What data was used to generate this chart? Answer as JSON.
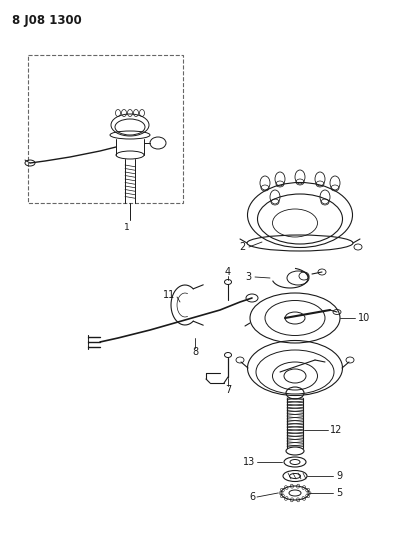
{
  "title": "8 J08 1300",
  "bg_color": "#ffffff",
  "line_color": "#1a1a1a",
  "fig_width": 3.98,
  "fig_height": 5.33,
  "dpi": 100
}
